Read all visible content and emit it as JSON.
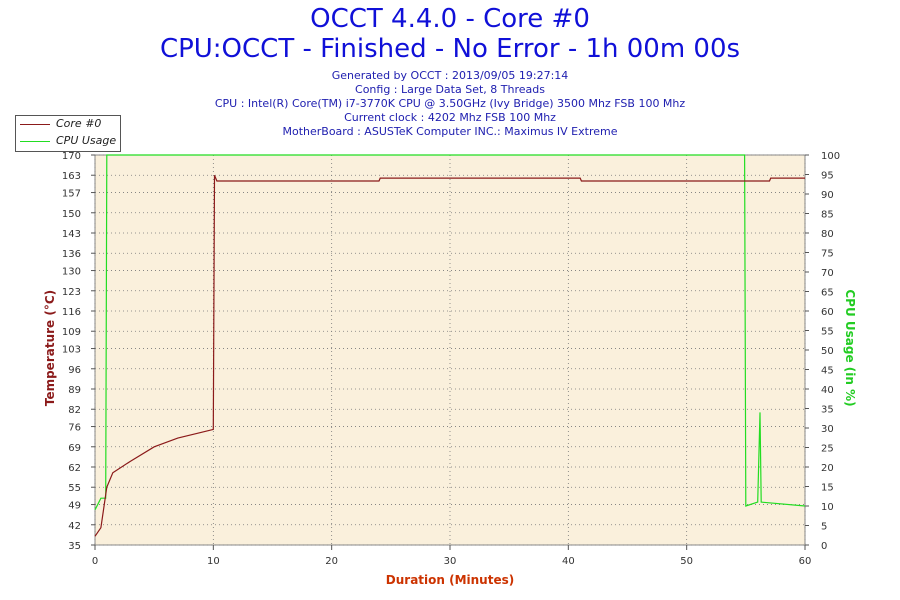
{
  "header": {
    "title": "OCCT 4.4.0 - Core #0",
    "subtitle": "CPU:OCCT - Finished - No Error - 1h 00m 00s",
    "lines": [
      "Generated by OCCT : 2013/09/05 19:27:14",
      "Config : Large Data Set, 8 Threads",
      "CPU : Intel(R) Core(TM) i7-3770K CPU @ 3.50GHz (Ivy Bridge) 3500 Mhz FSB 100 Mhz",
      "Current clock : 4202 Mhz FSB 100 Mhz",
      "MotherBoard : ASUSTeK Computer INC.: Maximus IV Extreme"
    ]
  },
  "colors": {
    "temp": "#8b1a1a",
    "usage": "#22dd22",
    "plot_bg": "#faf0dc",
    "left_axis": "#8b1a1a",
    "right_axis": "#22cc22",
    "x_axis": "#cc3300"
  },
  "chart_data": {
    "type": "line",
    "xlabel": "Duration (Minutes)",
    "ylabel_left": "Temperature (°C)",
    "ylabel_right": "CPU Usage (in %)",
    "xlim": [
      0,
      60
    ],
    "ylim_left": [
      35,
      170
    ],
    "ylim_right": [
      0,
      100
    ],
    "x_ticks": [
      0,
      10,
      20,
      30,
      40,
      50,
      60
    ],
    "y_ticks_left": [
      35,
      42,
      49,
      55,
      62,
      69,
      76,
      82,
      89,
      96,
      103,
      109,
      116,
      123,
      130,
      136,
      143,
      150,
      157,
      163,
      170
    ],
    "y_ticks_right": [
      0,
      5,
      10,
      15,
      20,
      25,
      30,
      35,
      40,
      45,
      50,
      55,
      60,
      65,
      70,
      75,
      80,
      85,
      90,
      95,
      100
    ],
    "grid": true,
    "legend_position": "top-left",
    "series": [
      {
        "name": "Core #0",
        "axis": "left",
        "points": [
          [
            0,
            38
          ],
          [
            0.5,
            41
          ],
          [
            1,
            55
          ],
          [
            1.5,
            60
          ],
          [
            3,
            64
          ],
          [
            5,
            69
          ],
          [
            7,
            72
          ],
          [
            9,
            74
          ],
          [
            10,
            75
          ],
          [
            10.1,
            163
          ],
          [
            10.3,
            161
          ],
          [
            24,
            161
          ],
          [
            24.1,
            162
          ],
          [
            41,
            162
          ],
          [
            41.1,
            161
          ],
          [
            57,
            161
          ],
          [
            57.1,
            162
          ],
          [
            60,
            162
          ]
        ]
      },
      {
        "name": "CPU Usage",
        "axis": "right",
        "points": [
          [
            0,
            9
          ],
          [
            0.5,
            12
          ],
          [
            0.9,
            12
          ],
          [
            1,
            100
          ],
          [
            54.9,
            100
          ],
          [
            55,
            10
          ],
          [
            56,
            11
          ],
          [
            56.2,
            34
          ],
          [
            56.3,
            11
          ],
          [
            60,
            10
          ]
        ]
      }
    ]
  }
}
